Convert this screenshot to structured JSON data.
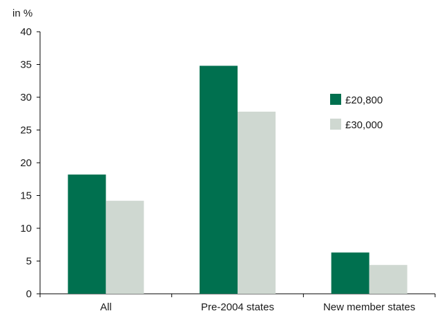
{
  "chart_data": {
    "type": "bar",
    "title": "",
    "xlabel": "",
    "ylabel": "in %",
    "ylim": [
      0,
      40
    ],
    "yticks": [
      0,
      5,
      10,
      15,
      20,
      25,
      30,
      35,
      40
    ],
    "grid": false,
    "legend_position": "right",
    "categories": [
      "All",
      "Pre-2004 states",
      "New member states"
    ],
    "series": [
      {
        "name": "£20,800",
        "color": "#00704f",
        "values": [
          18.2,
          34.8,
          6.3
        ]
      },
      {
        "name": "£30,000",
        "color": "#cfd8d1",
        "values": [
          14.2,
          27.8,
          4.4
        ]
      }
    ]
  }
}
